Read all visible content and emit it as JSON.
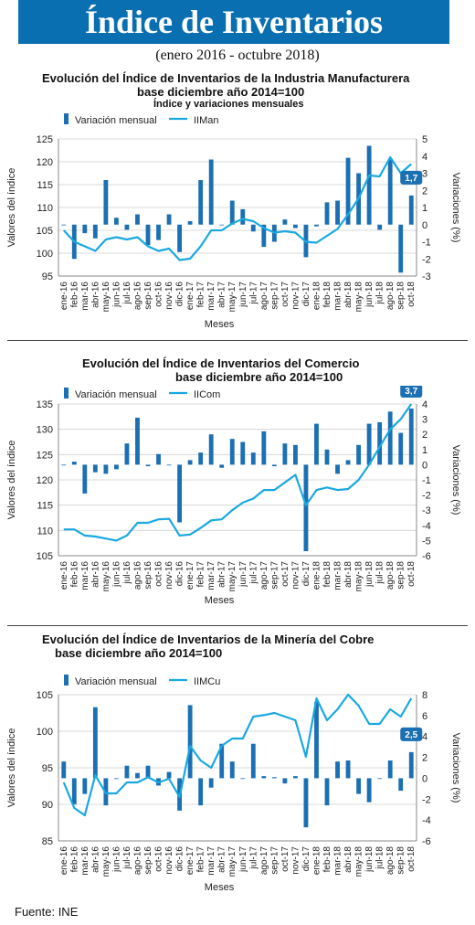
{
  "header": {
    "title": "Índice de Inventarios",
    "subtitle": "(enero 2016 - octubre 2018)"
  },
  "footer": {
    "source": "Fuente: INE"
  },
  "colors": {
    "banner": "#0a6fb0",
    "bar": "#1b6fb3",
    "line": "#1aa8e0",
    "callout": "#1b6fb3"
  },
  "chart_data": [
    {
      "type": "bar",
      "title_lines": [
        "Evolución del Índice de Inventarios de la  Industria  Manufacturera",
        "base diciembre año 2014=100",
        "Índice y variaciones mensuales"
      ],
      "xlabel": "Meses",
      "ylabel": "Valores del índice",
      "y2label": "Variaciones (%)",
      "ylim": [
        95,
        125
      ],
      "yticks": [
        95,
        100,
        105,
        110,
        115,
        120,
        125
      ],
      "y2lim": [
        -3,
        5
      ],
      "y2ticks": [
        -3,
        -2,
        -1,
        0,
        1,
        2,
        3,
        4,
        5
      ],
      "categories": [
        "ene-16",
        "feb-16",
        "mar-16",
        "abr-16",
        "may-16",
        "jun-16",
        "jul-16",
        "ago-16",
        "sep-16",
        "oct-16",
        "nov-16",
        "dic-16",
        "ene-17",
        "feb-17",
        "mar-17",
        "abr-17",
        "may-17",
        "jun-17",
        "jul-17",
        "ago-17",
        "sep-17",
        "oct-17",
        "nov-17",
        "dic-17",
        "ene-18",
        "feb-18",
        "mar-18",
        "abr-18",
        "may-18",
        "jun-18",
        "jul-18",
        "ago-18",
        "sep-18",
        "oct-18"
      ],
      "series": [
        {
          "name": "Variación mensual",
          "axis": "right",
          "kind": "bar",
          "values": [
            0.0,
            -2.0,
            -0.5,
            -0.8,
            2.6,
            0.4,
            -0.3,
            0.6,
            -1.2,
            -0.9,
            0.6,
            -1.6,
            0.2,
            2.6,
            3.8,
            0.0,
            1.4,
            0.9,
            -0.4,
            -1.3,
            -1.0,
            0.3,
            -0.2,
            -1.9,
            -0.1,
            1.3,
            1.4,
            3.9,
            3.0,
            4.6,
            -0.3,
            3.8,
            -2.8,
            1.7
          ]
        },
        {
          "name": "IIMan",
          "axis": "left",
          "kind": "line",
          "values": [
            105.0,
            102.5,
            101.5,
            100.5,
            103.0,
            103.5,
            103.0,
            103.5,
            101.5,
            100.5,
            101.0,
            98.5,
            98.8,
            101.5,
            105.0,
            105.0,
            106.5,
            107.5,
            107.0,
            105.5,
            104.5,
            104.8,
            104.5,
            102.5,
            102.3,
            103.8,
            105.3,
            108.5,
            112.0,
            117.0,
            116.8,
            121.0,
            117.5,
            119.5
          ]
        }
      ],
      "callout": {
        "index": 33,
        "text": "1,7"
      }
    },
    {
      "type": "bar",
      "title_lines": [
        "Evolución del Índice de Inventarios del  Comercio",
        "base diciembre año 2014=100"
      ],
      "xlabel": "Meses",
      "ylabel": "Valores del índice",
      "y2label": "Variaciones (%)",
      "ylim": [
        105,
        135
      ],
      "yticks": [
        105,
        110,
        115,
        120,
        125,
        130,
        135
      ],
      "y2lim": [
        -6,
        4
      ],
      "y2ticks": [
        -6,
        -5,
        -4,
        -3,
        -2,
        -1,
        0,
        1,
        2,
        3,
        4
      ],
      "categories": [
        "ene-16",
        "feb-16",
        "mar-16",
        "abr-16",
        "may-16",
        "jun-16",
        "jul-16",
        "ago-16",
        "sep-16",
        "oct-16",
        "nov-16",
        "dic-16",
        "ene-17",
        "feb-17",
        "mar-17",
        "abr-17",
        "may-17",
        "jun-17",
        "jul-17",
        "ago-17",
        "sep-17",
        "oct-17",
        "nov-17",
        "dic-17",
        "ene-18",
        "feb-18",
        "mar-18",
        "abr-18",
        "may-18",
        "jun-18",
        "jul-18",
        "ago-18",
        "sep-18",
        "oct-18"
      ],
      "series": [
        {
          "name": "Variación mensual",
          "axis": "right",
          "kind": "bar",
          "values": [
            0.0,
            0.2,
            -1.9,
            -0.5,
            -0.6,
            -0.3,
            1.4,
            3.1,
            -0.1,
            0.7,
            0.0,
            -3.8,
            0.3,
            0.8,
            2.0,
            -0.2,
            1.7,
            1.5,
            0.8,
            2.2,
            -0.1,
            1.4,
            1.3,
            -5.7,
            2.7,
            1.0,
            -0.6,
            0.3,
            1.3,
            2.7,
            2.8,
            3.5,
            2.1,
            3.7
          ]
        },
        {
          "name": "IICom",
          "axis": "left",
          "kind": "line",
          "values": [
            110.2,
            110.2,
            109.0,
            108.8,
            108.4,
            108.0,
            109.0,
            111.5,
            111.5,
            112.2,
            112.3,
            109.0,
            109.2,
            110.5,
            112.0,
            112.2,
            114.0,
            115.5,
            116.3,
            118.0,
            118.0,
            119.5,
            121.0,
            115.0,
            118.0,
            118.5,
            118.0,
            118.2,
            120.0,
            123.0,
            126.5,
            130.0,
            132.0,
            135.0
          ]
        }
      ],
      "callout": {
        "index": 33,
        "text": "3,7"
      }
    },
    {
      "type": "bar",
      "title_lines": [
        "Evolución del Índice de Inventarios de la  Minería del  Cobre",
        "base diciembre año 2014=100"
      ],
      "xlabel": "Meses",
      "ylabel": "Valores del índice",
      "y2label": "Variaciones (%)",
      "ylim": [
        85,
        105
      ],
      "yticks": [
        85,
        90,
        95,
        100,
        105
      ],
      "y2lim": [
        -6,
        8
      ],
      "y2ticks": [
        -6,
        -4,
        -2,
        0,
        2,
        4,
        6,
        8
      ],
      "categories": [
        "ene-16",
        "feb-16",
        "mar-16",
        "abr-16",
        "may-16",
        "jun-16",
        "jul-16",
        "ago-16",
        "sep-16",
        "oct-16",
        "nov-16",
        "dic-16",
        "ene-17",
        "feb-17",
        "mar-17",
        "abr-17",
        "may-17",
        "jun-17",
        "jul-17",
        "ago-17",
        "sep-17",
        "oct-17",
        "nov-17",
        "dic-17",
        "ene-18",
        "feb-18",
        "mar-18",
        "abr-18",
        "may-18",
        "jun-18",
        "jul-18",
        "ago-18",
        "sep-18",
        "oct-18"
      ],
      "series": [
        {
          "name": "Variación mensual",
          "axis": "right",
          "kind": "bar",
          "values": [
            1.6,
            -2.5,
            -1.5,
            6.8,
            -2.6,
            0.0,
            1.2,
            0.5,
            1.2,
            -0.7,
            0.6,
            -3.1,
            7.0,
            -2.6,
            -0.9,
            3.3,
            1.6,
            0.0,
            3.3,
            0.2,
            0.1,
            -0.5,
            0.2,
            -4.7,
            7.3,
            -2.6,
            1.6,
            1.7,
            -1.5,
            -2.3,
            0.0,
            1.7,
            -1.2,
            2.5
          ]
        },
        {
          "name": "IIMCu",
          "axis": "left",
          "kind": "line",
          "values": [
            93.0,
            89.5,
            88.5,
            94.0,
            91.5,
            91.5,
            93.0,
            93.0,
            93.7,
            93.0,
            93.5,
            91.0,
            98.0,
            96.0,
            95.0,
            98.0,
            99.0,
            99.0,
            102.0,
            102.2,
            102.5,
            102.0,
            101.5,
            96.5,
            104.5,
            101.5,
            103.0,
            105.0,
            103.5,
            101.0,
            101.0,
            103.0,
            102.0,
            104.5
          ]
        }
      ],
      "callout": {
        "index": 33,
        "text": "2,5"
      }
    }
  ]
}
